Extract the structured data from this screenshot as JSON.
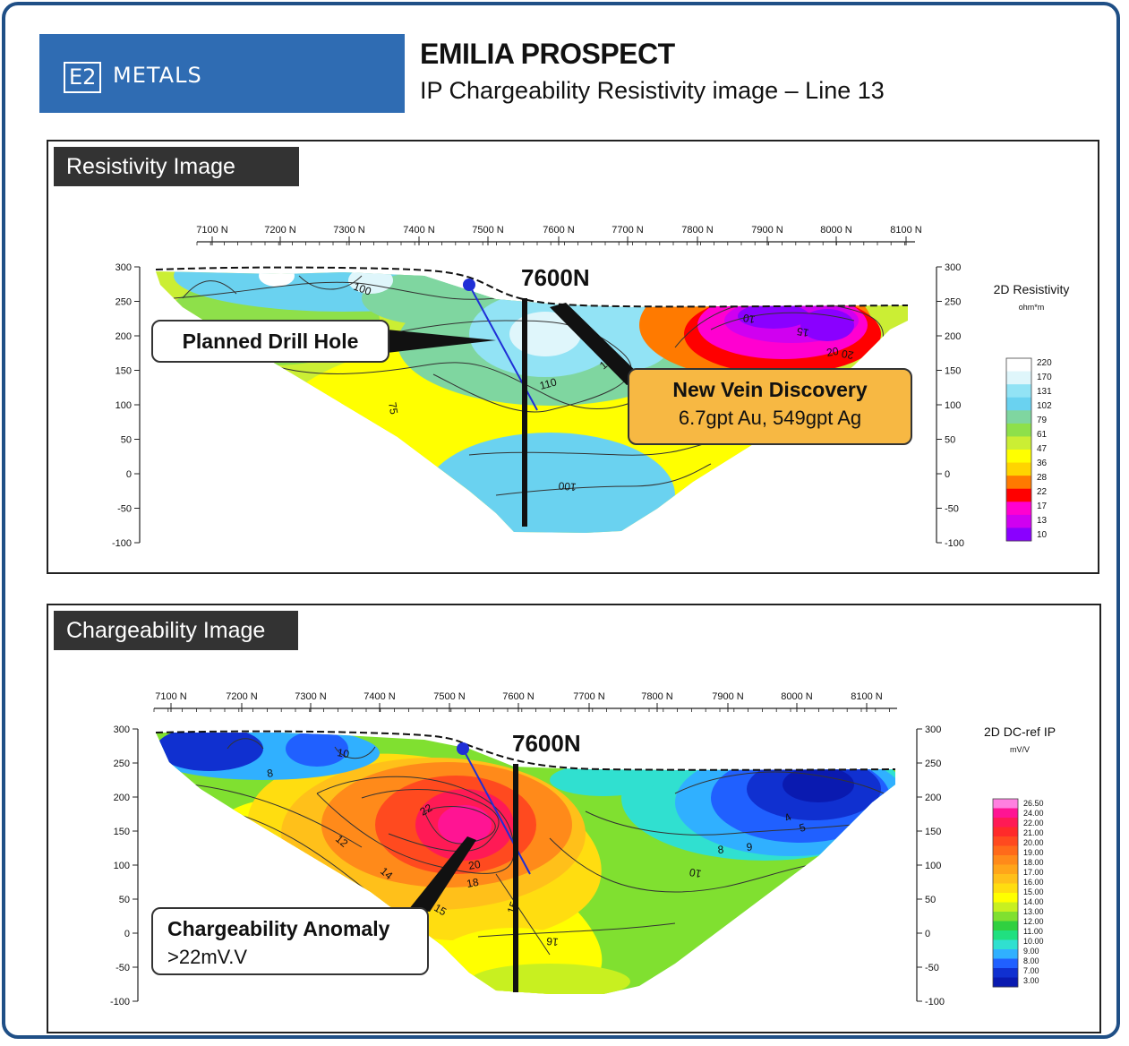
{
  "header": {
    "logo_box": "E2",
    "logo_text": "METALS",
    "title": "EMILIA PROSPECT",
    "subtitle": "IP Chargeability Resistivity image – Line 13"
  },
  "colors": {
    "border": "#1f4f86",
    "logo_bg": "#2f6cb3",
    "callout_fill": "#f7b843",
    "drill_hole": "#1f2fd6",
    "panel_tag_bg": "#333333"
  },
  "chart_data": [
    {
      "type": "heatmap",
      "panel_label": "Resistivity Image",
      "x_ticks": [
        "7100 N",
        "7200 N",
        "7300 N",
        "7400 N",
        "7500 N",
        "7600 N",
        "7700 N",
        "7800 N",
        "7900 N",
        "8000 N",
        "8100 N"
      ],
      "y_ticks": [
        "300",
        "250",
        "200",
        "150",
        "100",
        "50",
        "0",
        "-50",
        "-100"
      ],
      "ylim": [
        -100,
        300
      ],
      "legend_title": "2D Resistivity",
      "legend_unit": "ohm*m",
      "legend_values": [
        "220",
        "170",
        "131",
        "102",
        "79",
        "61",
        "47",
        "36",
        "28",
        "22",
        "17",
        "13",
        "10"
      ],
      "legend_colors": [
        "#ffffff",
        "#dff6fb",
        "#92e3f5",
        "#6ad2f0",
        "#7fd6a0",
        "#8ee04a",
        "#cbee34",
        "#ffff00",
        "#ffd400",
        "#ff7a00",
        "#ff0000",
        "#ff00d0",
        "#d000f0",
        "#8a00ff"
      ],
      "contour_labels": [
        "100",
        "75",
        "110",
        "100",
        "15",
        "10",
        "15",
        "20",
        "20"
      ],
      "section_line_label": "7600N",
      "annotations": [
        {
          "text": "Planned Drill Hole"
        },
        {
          "title": "New Vein Discovery",
          "detail": "6.7gpt Au, 549gpt Ag"
        }
      ]
    },
    {
      "type": "heatmap",
      "panel_label": "Chargeability Image",
      "x_ticks": [
        "7100 N",
        "7200 N",
        "7300 N",
        "7400 N",
        "7500 N",
        "7600 N",
        "7700 N",
        "7800 N",
        "7900 N",
        "8000 N",
        "8100 N"
      ],
      "y_ticks": [
        "300",
        "250",
        "200",
        "150",
        "100",
        "50",
        "0",
        "-50",
        "-100"
      ],
      "ylim": [
        -100,
        300
      ],
      "legend_title": "2D DC-ref IP",
      "legend_unit": "mV/V",
      "legend_values": [
        "26.50",
        "24.00",
        "22.00",
        "21.00",
        "20.00",
        "19.00",
        "18.00",
        "17.00",
        "16.00",
        "15.00",
        "14.00",
        "13.00",
        "12.00",
        "11.00",
        "10.00",
        "9.00",
        "8.00",
        "7.00",
        "3.00"
      ],
      "legend_colors": [
        "#ff80e0",
        "#ff1493",
        "#ff1a55",
        "#ff2a2a",
        "#ff4a1f",
        "#ff6a1a",
        "#ff8a1a",
        "#ffa51a",
        "#ffc01a",
        "#ffdd10",
        "#ffff00",
        "#c8f020",
        "#80e030",
        "#30d040",
        "#20e080",
        "#30e0d0",
        "#30b0ff",
        "#2060ff",
        "#1030d0",
        "#0a1ab0"
      ],
      "contour_labels": [
        "8",
        "10",
        "22",
        "12",
        "14",
        "20",
        "18",
        "15",
        "15",
        "16",
        "9",
        "8",
        "10",
        "5",
        "4"
      ],
      "section_line_label": "7600N",
      "annotations": [
        {
          "title": "Chargeability Anomaly",
          "detail": ">22mV.V"
        }
      ]
    }
  ]
}
